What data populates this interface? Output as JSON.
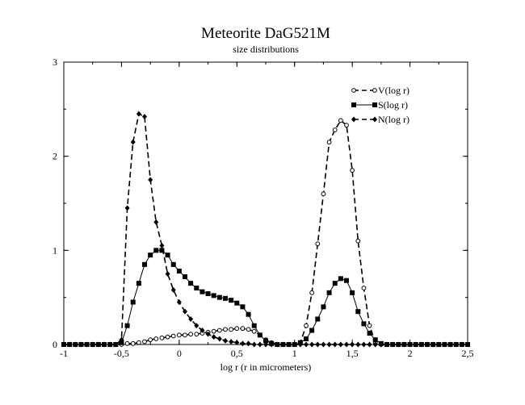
{
  "chart_data": {
    "type": "line",
    "title": "Meteorite DaG521M",
    "subtitle": "size distributions",
    "xlabel": "log r (r in micrometers)",
    "ylabel": "",
    "xlim": [
      -1,
      2.5
    ],
    "ylim": [
      0,
      3
    ],
    "x_ticks": [
      -1,
      -0.5,
      0,
      0.5,
      1,
      1.5,
      2,
      2.5
    ],
    "x_tick_labels": [
      "-1",
      "-0,5",
      "0",
      "0,5",
      "1",
      "1,5",
      "2",
      "2,5"
    ],
    "y_ticks": [
      0,
      1,
      2,
      3
    ],
    "y_tick_labels": [
      "0",
      "1",
      "2",
      "3"
    ],
    "grid": false,
    "legend_position": "top-right",
    "series": [
      {
        "name": "V(log r)",
        "line": "dashed",
        "marker": "open-circle",
        "x": [
          -1.0,
          -0.95,
          -0.9,
          -0.85,
          -0.8,
          -0.75,
          -0.7,
          -0.65,
          -0.6,
          -0.55,
          -0.5,
          -0.45,
          -0.4,
          -0.35,
          -0.3,
          -0.25,
          -0.2,
          -0.15,
          -0.1,
          -0.05,
          0.0,
          0.05,
          0.1,
          0.15,
          0.2,
          0.25,
          0.3,
          0.35,
          0.4,
          0.45,
          0.5,
          0.55,
          0.6,
          0.65,
          0.7,
          0.75,
          0.8,
          0.85,
          0.9,
          0.95,
          1.0,
          1.05,
          1.1,
          1.15,
          1.2,
          1.25,
          1.3,
          1.35,
          1.4,
          1.45,
          1.5,
          1.55,
          1.6,
          1.65,
          1.7,
          1.75,
          1.8,
          1.85,
          1.9,
          1.95,
          2.0,
          2.05,
          2.1,
          2.15,
          2.2,
          2.25,
          2.3,
          2.35,
          2.4,
          2.45,
          2.5
        ],
        "values": [
          0,
          0,
          0,
          0,
          0,
          0,
          0,
          0,
          0,
          0,
          0,
          0.01,
          0.01,
          0.02,
          0.03,
          0.05,
          0.06,
          0.07,
          0.08,
          0.09,
          0.1,
          0.1,
          0.11,
          0.11,
          0.12,
          0.13,
          0.14,
          0.15,
          0.16,
          0.16,
          0.17,
          0.17,
          0.16,
          0.14,
          0.1,
          0.05,
          0.02,
          0,
          0,
          0,
          0,
          0.02,
          0.2,
          0.55,
          1.07,
          1.6,
          2.15,
          2.28,
          2.38,
          2.33,
          1.85,
          1.1,
          0.6,
          0.2,
          0.02,
          0,
          0,
          0,
          0,
          0,
          0,
          0,
          0,
          0,
          0,
          0,
          0,
          0,
          0,
          0,
          0
        ]
      },
      {
        "name": "S(log r)",
        "line": "solid",
        "marker": "filled-square",
        "x": [
          -1.0,
          -0.95,
          -0.9,
          -0.85,
          -0.8,
          -0.75,
          -0.7,
          -0.65,
          -0.6,
          -0.55,
          -0.5,
          -0.45,
          -0.4,
          -0.35,
          -0.3,
          -0.25,
          -0.2,
          -0.15,
          -0.1,
          -0.05,
          0.0,
          0.05,
          0.1,
          0.15,
          0.2,
          0.25,
          0.3,
          0.35,
          0.4,
          0.45,
          0.5,
          0.55,
          0.6,
          0.65,
          0.7,
          0.75,
          0.8,
          0.85,
          0.9,
          0.95,
          1.0,
          1.05,
          1.1,
          1.15,
          1.2,
          1.25,
          1.3,
          1.35,
          1.4,
          1.45,
          1.5,
          1.55,
          1.6,
          1.65,
          1.7,
          1.75,
          1.8,
          1.85,
          1.9,
          1.95,
          2.0,
          2.05,
          2.1,
          2.15,
          2.2,
          2.25,
          2.3,
          2.35,
          2.4,
          2.45,
          2.5
        ],
        "values": [
          0,
          0,
          0,
          0,
          0,
          0,
          0,
          0,
          0,
          0,
          0.02,
          0.2,
          0.45,
          0.65,
          0.85,
          0.95,
          1.0,
          1.0,
          0.95,
          0.85,
          0.78,
          0.72,
          0.65,
          0.6,
          0.56,
          0.54,
          0.52,
          0.5,
          0.49,
          0.47,
          0.44,
          0.4,
          0.32,
          0.2,
          0.1,
          0.04,
          0.01,
          0,
          0,
          0,
          0,
          0.02,
          0.06,
          0.15,
          0.27,
          0.4,
          0.55,
          0.65,
          0.7,
          0.68,
          0.55,
          0.35,
          0.22,
          0.12,
          0.05,
          0.01,
          0,
          0,
          0,
          0,
          0,
          0,
          0,
          0,
          0,
          0,
          0,
          0,
          0,
          0,
          0
        ]
      },
      {
        "name": "N(log r)",
        "line": "dashed",
        "marker": "filled-diamond",
        "x": [
          -1.0,
          -0.95,
          -0.9,
          -0.85,
          -0.8,
          -0.75,
          -0.7,
          -0.65,
          -0.6,
          -0.55,
          -0.5,
          -0.45,
          -0.4,
          -0.35,
          -0.3,
          -0.25,
          -0.2,
          -0.15,
          -0.1,
          -0.05,
          0.0,
          0.05,
          0.1,
          0.15,
          0.2,
          0.25,
          0.3,
          0.35,
          0.4,
          0.45,
          0.5,
          0.55,
          0.6,
          0.65,
          0.7,
          0.75,
          0.8,
          0.85,
          0.9,
          0.95,
          1.0,
          1.05,
          1.1,
          1.15,
          1.2,
          1.25,
          1.3,
          1.35,
          1.4,
          1.45,
          1.5,
          1.55,
          1.6,
          1.65,
          1.7,
          1.75,
          1.8,
          1.85,
          1.9,
          1.95,
          2.0,
          2.05,
          2.1,
          2.15,
          2.2,
          2.25,
          2.3,
          2.35,
          2.4,
          2.45,
          2.5
        ],
        "values": [
          0,
          0,
          0,
          0,
          0,
          0,
          0,
          0,
          0,
          0,
          0.05,
          1.45,
          2.15,
          2.45,
          2.42,
          1.75,
          1.3,
          1.05,
          0.75,
          0.58,
          0.45,
          0.35,
          0.27,
          0.2,
          0.15,
          0.11,
          0.08,
          0.06,
          0.04,
          0.03,
          0.02,
          0.01,
          0.01,
          0,
          0,
          0,
          0,
          0,
          0,
          0,
          0,
          0,
          0,
          0,
          0,
          0,
          0,
          0,
          0,
          0,
          0,
          0,
          0,
          0,
          0,
          0,
          0,
          0,
          0,
          0,
          0,
          0,
          0,
          0,
          0,
          0,
          0,
          0,
          0,
          0,
          0
        ]
      }
    ]
  }
}
